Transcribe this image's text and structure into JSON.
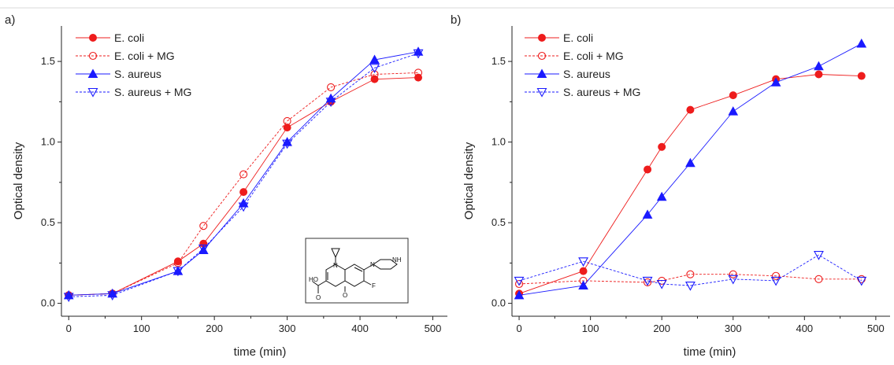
{
  "colors": {
    "red": "#ee1c1c",
    "blue": "#1a1aff",
    "axis": "#222222"
  },
  "chart_data": [
    {
      "panel_label": "a)",
      "type": "line",
      "xlabel": "time (min)",
      "ylabel": "Optical density",
      "xlim": [
        -10,
        520
      ],
      "ylim": [
        -0.08,
        1.72
      ],
      "xticks": [
        0,
        100,
        200,
        300,
        400,
        500
      ],
      "yticks": [
        0.0,
        0.5,
        1.0,
        1.5
      ],
      "xtick_labels": [
        "0",
        "100",
        "200",
        "300",
        "400",
        "500"
      ],
      "ytick_labels": [
        "0.0",
        "0.5",
        "1.0",
        "1.5"
      ],
      "grid": false,
      "legend_position": "top-left",
      "inset": "molecular structure (ciprofloxacin-like) in lower right",
      "structure_atoms": [
        "N",
        "NH",
        "N",
        "HO",
        "O",
        "O",
        "F"
      ],
      "series": [
        {
          "name": "E. coli",
          "color": "#ee1c1c",
          "marker": "circle-filled",
          "dash": false,
          "x": [
            0,
            60,
            150,
            185,
            240,
            300,
            360,
            420,
            480
          ],
          "y": [
            0.05,
            0.06,
            0.26,
            0.37,
            0.69,
            1.09,
            1.25,
            1.39,
            1.4
          ]
        },
        {
          "name": "E. coli + MG",
          "color": "#ee1c1c",
          "marker": "circle-open",
          "dash": true,
          "x": [
            0,
            60,
            150,
            185,
            240,
            300,
            360,
            420,
            480
          ],
          "y": [
            0.05,
            0.06,
            0.25,
            0.48,
            0.8,
            1.13,
            1.34,
            1.42,
            1.43
          ]
        },
        {
          "name": "S. aureus",
          "color": "#1a1aff",
          "marker": "triangle-up-filled",
          "dash": false,
          "x": [
            0,
            60,
            150,
            185,
            240,
            300,
            360,
            420,
            480
          ],
          "y": [
            0.05,
            0.06,
            0.2,
            0.33,
            0.62,
            1.0,
            1.27,
            1.51,
            1.56
          ]
        },
        {
          "name": "S. aureus + MG",
          "color": "#1a1aff",
          "marker": "triangle-down-open",
          "dash": true,
          "x": [
            0,
            60,
            150,
            185,
            240,
            300,
            360,
            420,
            480
          ],
          "y": [
            0.04,
            0.05,
            0.2,
            0.34,
            0.6,
            0.99,
            1.25,
            1.46,
            1.55
          ]
        }
      ]
    },
    {
      "panel_label": "b)",
      "type": "line",
      "xlabel": "time (min)",
      "ylabel": "Optical density",
      "xlim": [
        -10,
        520
      ],
      "ylim": [
        -0.08,
        1.72
      ],
      "xticks": [
        0,
        100,
        200,
        300,
        400,
        500
      ],
      "yticks": [
        0.0,
        0.5,
        1.0,
        1.5
      ],
      "xtick_labels": [
        "0",
        "100",
        "200",
        "300",
        "400",
        "500"
      ],
      "ytick_labels": [
        "0.0",
        "0.5",
        "1.0",
        "1.5"
      ],
      "grid": false,
      "legend_position": "top-left",
      "series": [
        {
          "name": "E. coli",
          "color": "#ee1c1c",
          "marker": "circle-filled",
          "dash": false,
          "x": [
            0,
            90,
            180,
            200,
            240,
            300,
            360,
            420,
            480
          ],
          "y": [
            0.06,
            0.2,
            0.83,
            0.97,
            1.2,
            1.29,
            1.39,
            1.42,
            1.41
          ]
        },
        {
          "name": "E. coli + MG",
          "color": "#ee1c1c",
          "marker": "circle-open",
          "dash": true,
          "x": [
            0,
            90,
            180,
            200,
            240,
            300,
            360,
            420,
            480
          ],
          "y": [
            0.12,
            0.14,
            0.13,
            0.14,
            0.18,
            0.18,
            0.17,
            0.15,
            0.15
          ]
        },
        {
          "name": "S. aureus",
          "color": "#1a1aff",
          "marker": "triangle-up-filled",
          "dash": false,
          "x": [
            0,
            90,
            180,
            200,
            240,
            300,
            360,
            420,
            480
          ],
          "y": [
            0.05,
            0.11,
            0.55,
            0.66,
            0.87,
            1.19,
            1.37,
            1.47,
            1.61
          ]
        },
        {
          "name": "S. aureus + MG",
          "color": "#1a1aff",
          "marker": "triangle-down-open",
          "dash": true,
          "x": [
            0,
            90,
            180,
            200,
            240,
            300,
            360,
            420,
            480
          ],
          "y": [
            0.14,
            0.26,
            0.14,
            0.12,
            0.11,
            0.15,
            0.14,
            0.3,
            0.14
          ]
        }
      ]
    }
  ]
}
